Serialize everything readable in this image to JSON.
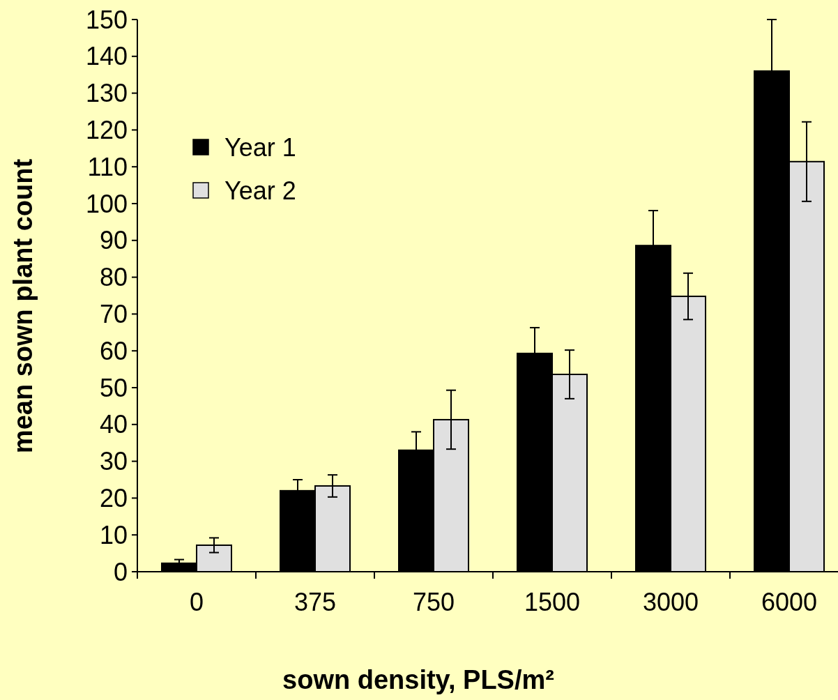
{
  "chart_data": {
    "type": "bar",
    "xlabel": "sown density, PLS/m²",
    "ylabel": "mean sown plant count",
    "categories": [
      "0",
      "375",
      "750",
      "1500",
      "3000",
      "6000"
    ],
    "series": [
      {
        "name": "Year 1",
        "color": "#000000",
        "values": [
          2.3,
          22,
          33,
          59.3,
          88.6,
          136
        ],
        "errors": [
          1,
          3,
          5,
          7,
          9.5,
          14
        ]
      },
      {
        "name": "Year 2",
        "color": "#e0e0e0",
        "values": [
          7.2,
          23.3,
          41.3,
          53.6,
          74.8,
          111.4
        ],
        "errors": [
          2,
          3,
          8,
          6.6,
          6.3,
          10.8
        ]
      }
    ],
    "ylim": [
      0,
      150
    ],
    "yticks": [
      0,
      10,
      20,
      30,
      40,
      50,
      60,
      70,
      80,
      90,
      100,
      110,
      120,
      130,
      140,
      150
    ],
    "grid": false,
    "legend": "top left"
  }
}
